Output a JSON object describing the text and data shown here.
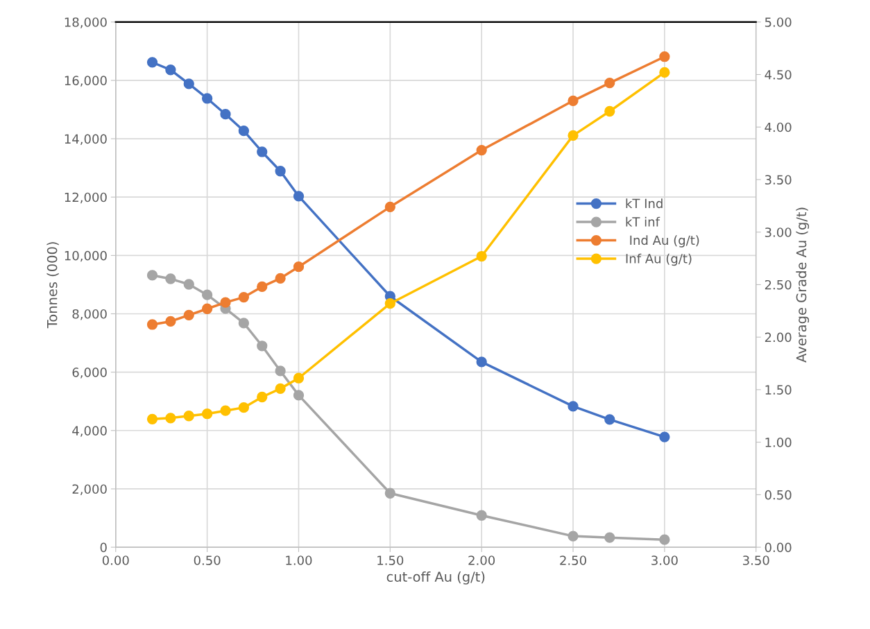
{
  "chart_data": {
    "type": "line",
    "xlabel": "cut-off Au (g/t)",
    "ylabel": "Tonnes (000)",
    "y2label": "Average Grade Au (g/t)",
    "x": [
      0.2,
      0.3,
      0.4,
      0.5,
      0.6,
      0.7,
      0.8,
      0.9,
      1.0,
      1.5,
      2.0,
      2.5,
      2.7,
      3.0
    ],
    "series": [
      {
        "name": "kT Ind",
        "color": "#4472c4",
        "values": [
          16620,
          16360,
          15880,
          15380,
          14840,
          14270,
          13550,
          12890,
          12030,
          8600,
          6350,
          4830,
          4380,
          3780
        ]
      },
      {
        "name": "kT inf",
        "color": "#a5a5a5",
        "values": [
          9320,
          9200,
          9010,
          8650,
          8180,
          7680,
          6900,
          6040,
          5210,
          1850,
          1090,
          380,
          330,
          260
        ]
      },
      {
        "name": " Ind Au (g/t)",
        "color": "#ed7d31",
        "axis": "y2",
        "values": [
          2.12,
          2.15,
          2.21,
          2.27,
          2.33,
          2.38,
          2.48,
          2.56,
          2.67,
          3.24,
          3.78,
          4.25,
          4.42,
          4.67
        ]
      },
      {
        "name": "Inf Au (g/t)",
        "color": "#ffc000",
        "axis": "y2",
        "values": [
          1.22,
          1.23,
          1.25,
          1.27,
          1.3,
          1.33,
          1.43,
          1.51,
          1.61,
          2.32,
          2.77,
          3.92,
          4.15,
          4.52
        ]
      }
    ],
    "xlim": [
      0,
      3.5
    ],
    "xticks": [
      {
        "value": 0,
        "label": "0.00"
      },
      {
        "value": 0.5,
        "label": "0.50"
      },
      {
        "value": 1,
        "label": "1.00"
      },
      {
        "value": 1.5,
        "label": "1.50"
      },
      {
        "value": 2,
        "label": "2.00"
      },
      {
        "value": 2.5,
        "label": "2.50"
      },
      {
        "value": 3,
        "label": "3.00"
      },
      {
        "value": 3.5,
        "label": "3.50"
      }
    ],
    "ylim": [
      0,
      18000
    ],
    "yticks": [
      0,
      {
        "value": 2000,
        "label": "2,000"
      },
      {
        "value": 4000,
        "label": "4,000"
      },
      {
        "value": 6000,
        "label": "6,000"
      },
      {
        "value": 8000,
        "label": "8,000"
      },
      {
        "value": 10000,
        "label": "10,000"
      },
      {
        "value": 12000,
        "label": "12,000"
      },
      {
        "value": 14000,
        "label": "14,000"
      },
      {
        "value": 16000,
        "label": "16,000"
      },
      {
        "value": 18000,
        "label": "18,000"
      }
    ],
    "y2lim": [
      0,
      5
    ],
    "y2ticks": [
      {
        "value": 0,
        "label": "0.00"
      },
      {
        "value": 0.5,
        "label": "0.50"
      },
      {
        "value": 1,
        "label": "1.00"
      },
      {
        "value": 1.5,
        "label": "1.50"
      },
      {
        "value": 2,
        "label": "2.00"
      },
      {
        "value": 2.5,
        "label": "2.50"
      },
      {
        "value": 3,
        "label": "3.00"
      },
      {
        "value": 3.5,
        "label": "3.50"
      },
      {
        "value": 4,
        "label": "4.00"
      },
      {
        "value": 4.5,
        "label": "4.50"
      },
      {
        "value": 5,
        "label": "5.00"
      }
    ],
    "grid": true,
    "legend": "right",
    "marker": "circle",
    "line_style": "solid"
  }
}
